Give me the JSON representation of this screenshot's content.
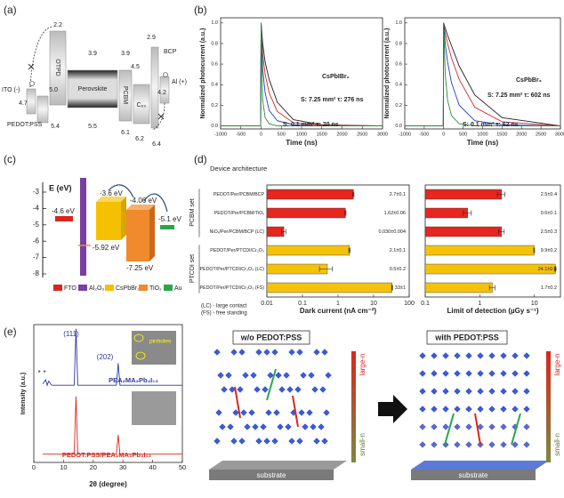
{
  "panel_labels": [
    "(a)",
    "(b)",
    "(c)",
    "(d)",
    "(e)"
  ],
  "panel_a": {
    "levels": [
      "2.2",
      "3.9",
      "3.9",
      "4.5",
      "2.9",
      "4.7",
      "5.0",
      "5.4",
      "5.5",
      "6.1",
      "6.2",
      "6.4",
      "4.2"
    ],
    "layers": [
      "ITO (-)",
      "PEDOT:PSS",
      "OTPD",
      "Perovskite",
      "PCBM",
      "C₆₀",
      "BCP",
      "Al (+)"
    ]
  },
  "panel_c": {
    "axis_label": "E (eV)",
    "ticks": [
      "-3",
      "-4",
      "-5",
      "-6",
      "-7",
      "-8"
    ],
    "levels": [
      "-4.6 eV",
      "-3.6 eV",
      "-4.06 eV",
      "-5.1 eV",
      "-5.92 eV",
      "-7.25 eV"
    ],
    "legend": [
      "FTO",
      "Al₂O₃",
      "CsPbBr₃",
      "TiO₂",
      "Au"
    ]
  },
  "panel_e_schematic": {
    "titles": [
      "w/o PEDOT:PSS",
      "with PEDOT:PSS"
    ],
    "arrow_top": [
      "large-n",
      "large-n"
    ],
    "arrow_bottom": [
      "small-n",
      "small-n"
    ],
    "substrate": [
      "substrate",
      "substrate"
    ]
  },
  "chart_data": [
    {
      "type": "line",
      "xlabel": "Time (ns)",
      "ylabel": "Normalized photocurrent (a.u.)",
      "x": [
        -1000,
        -10,
        0,
        40,
        100,
        200,
        400,
        800,
        1500,
        3000
      ],
      "series": [
        {
          "color": "#222222",
          "values": [
            0,
            0,
            1,
            0.8,
            0.62,
            0.45,
            0.23,
            0.06,
            0.01,
            0
          ]
        },
        {
          "color": "#d62728",
          "values": [
            0,
            0,
            1,
            0.7,
            0.5,
            0.32,
            0.14,
            0.03,
            0.005,
            0
          ]
        },
        {
          "color": "#1f3fbf",
          "values": [
            0,
            0,
            1,
            0.55,
            0.32,
            0.15,
            0.05,
            0.01,
            0,
            0
          ]
        },
        {
          "color": "#2a8a3a",
          "values": [
            0,
            0,
            1,
            0.25,
            0.08,
            0.02,
            0,
            0,
            0,
            0
          ]
        }
      ],
      "xlim": [
        -1000,
        3000
      ],
      "xticks": [
        -1000,
        -500,
        0,
        500,
        1000,
        1500,
        2000,
        2500,
        3000
      ],
      "ylim": [
        -0.03,
        1.05
      ],
      "yticks": [
        {
          "value": 0,
          "label": "0.0"
        },
        0.2,
        0.4,
        0.6,
        0.8,
        {
          "value": 1,
          "label": "1.0"
        }
      ],
      "grid": false,
      "annotations": [
        "CsPbIBr₂",
        "S: 7.25 mm² τ: 276 ns",
        "S: 0.1 mm² τ: 20 ns"
      ]
    },
    {
      "type": "line",
      "xlabel": "Time (ns)",
      "ylabel": "Normalized photocurrent (a.u.)",
      "x": [
        -1000,
        -10,
        0,
        40,
        100,
        200,
        400,
        800,
        1500,
        3000
      ],
      "series": [
        {
          "color": "#222222",
          "values": [
            0,
            0,
            1,
            0.95,
            0.88,
            0.78,
            0.58,
            0.3,
            0.08,
            0
          ]
        },
        {
          "color": "#d62728",
          "values": [
            0,
            0,
            1,
            0.9,
            0.8,
            0.66,
            0.45,
            0.18,
            0.04,
            0
          ]
        },
        {
          "color": "#1f3fbf",
          "values": [
            0,
            0,
            1,
            0.8,
            0.62,
            0.42,
            0.2,
            0.05,
            0.01,
            0
          ]
        },
        {
          "color": "#2a8a3a",
          "values": [
            0,
            0,
            1,
            0.5,
            0.25,
            0.1,
            0.02,
            0,
            0,
            0
          ]
        }
      ],
      "xlim": [
        -1000,
        3000
      ],
      "xticks": [
        -1000,
        -500,
        0,
        500,
        1000,
        1500,
        2000,
        2500,
        3000
      ],
      "ylim": [
        -0.03,
        1.05
      ],
      "yticks": [
        {
          "value": 0,
          "label": "0.0"
        },
        0.2,
        0.4,
        0.6,
        0.8,
        {
          "value": 1,
          "label": "1.0"
        }
      ],
      "grid": false,
      "annotations": [
        "CsPbBr₃",
        "S: 7.25 mm² τ: 602 ns",
        "S: 0.1 mm² τ: 62 ns"
      ]
    },
    {
      "type": "bar",
      "orientation": "horizontal",
      "log_x": true,
      "xlabel": "Dark current (nA cm⁻²)",
      "categories": [
        "PEDOT/Per/PCBM/BCP",
        "PEDOT/Per/PCBM/TiOₓ",
        "NiOₓ/Per/PCBM/BCP (LC)",
        "PEDOT/Per/PTCDI/Cr₂O₃",
        "PEDOT/Per/PTCDI/Cr₂O₃ (LC)",
        "PEDOT/Per/PTCDI/Cr₂O₃ (FS)"
      ],
      "values": [
        2.7,
        1.62,
        0.03,
        2.1,
        0.5,
        33
      ],
      "errors": [
        0.1,
        0.06,
        0.004,
        0.1,
        0.2,
        1
      ],
      "value_labels": [
        "2.7±0.1",
        "1.62±0.06",
        "0.030±0.004",
        "2.1±0.1",
        "0.5±0.2",
        "33±1"
      ],
      "colors": [
        "#e8251f",
        "#e8251f",
        "#e8251f",
        "#f4c20d",
        "#f4c20d",
        "#f4c20d"
      ],
      "xlim": [
        0.01,
        100
      ],
      "xticks": [
        0.01,
        0.1,
        1,
        10,
        100
      ],
      "grid": false,
      "annotations": [
        "Device architecture",
        "PCBM set",
        "PTCDI set",
        "(LC) - large contact",
        "(FS) - free standing"
      ]
    },
    {
      "type": "bar",
      "orientation": "horizontal",
      "log_x": true,
      "xlabel": "Limit of detection (µGy s⁻¹)",
      "values": [
        2.5,
        0.6,
        2.5,
        9.9,
        24.1,
        1.7
      ],
      "errors": [
        0.4,
        0.1,
        0.3,
        0.2,
        0.6,
        0.2
      ],
      "value_labels": [
        "2.5±0.4",
        "0.6±0.1",
        "2.5±0.3",
        "9.9±0.2",
        "24.1±0.6",
        "1.7±0.2"
      ],
      "colors": [
        "#e8251f",
        "#e8251f",
        "#e8251f",
        "#f4c20d",
        "#f4c20d",
        "#f4c20d"
      ],
      "xlim": [
        0.1,
        30
      ],
      "xticks": [
        0.1,
        1,
        10
      ],
      "grid": false
    },
    {
      "type": "line",
      "xlabel": "2θ (degree)",
      "ylabel": "Intensity (a.u.)",
      "x": [
        3,
        4,
        4.5,
        5,
        6,
        13.6,
        14.2,
        14.8,
        20,
        27.8,
        28.4,
        29,
        35,
        50
      ],
      "series": [
        {
          "name": "PEA₂MA₃Pb₄I₁₃",
          "color": "#2b3a99",
          "values": [
            0.57,
            0.6,
            0.56,
            0.59,
            0.56,
            0.56,
            0.97,
            0.56,
            0.56,
            0.56,
            0.72,
            0.56,
            0.56,
            0.56
          ]
        },
        {
          "name": "PEDOT:PSS/PEA₂MA₃Pb₄I₁₃",
          "color": "#d9261c",
          "values": [
            0.06,
            0.06,
            0.06,
            0.06,
            0.06,
            0.06,
            0.48,
            0.06,
            0.06,
            0.06,
            0.2,
            0.06,
            0.06,
            0.06
          ]
        }
      ],
      "xlim": [
        0,
        50
      ],
      "xticks": [
        0,
        10,
        20,
        30,
        40,
        50
      ],
      "ylim": [
        0,
        1
      ],
      "grid": false,
      "annotations": [
        "(111)",
        "(202)",
        "*",
        "*",
        "pinholes"
      ]
    }
  ]
}
